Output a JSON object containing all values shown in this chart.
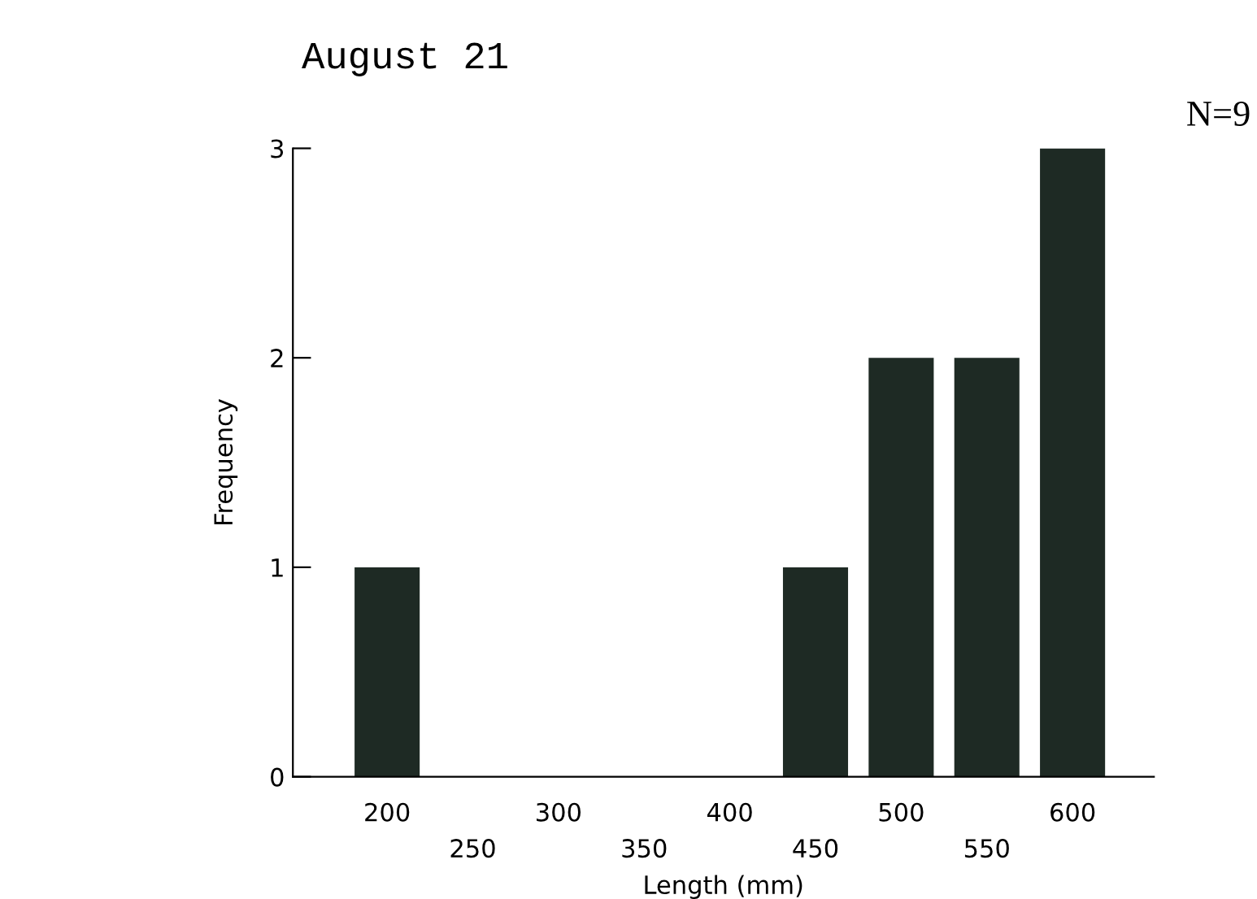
{
  "chart_data": {
    "type": "bar",
    "title": "August 21",
    "xlabel": "Length (mm)",
    "ylabel": "Frequency",
    "annotations": [
      "N=9"
    ],
    "categories": [
      "200",
      "250",
      "300",
      "350",
      "400",
      "450",
      "500",
      "550",
      "600"
    ],
    "values": [
      1,
      0,
      0,
      0,
      0,
      1,
      2,
      2,
      3
    ],
    "color": "#1e2a24",
    "ylim": [
      0,
      3
    ],
    "yticks": [
      0,
      1,
      2,
      3
    ],
    "grid": false,
    "legend": false
  }
}
